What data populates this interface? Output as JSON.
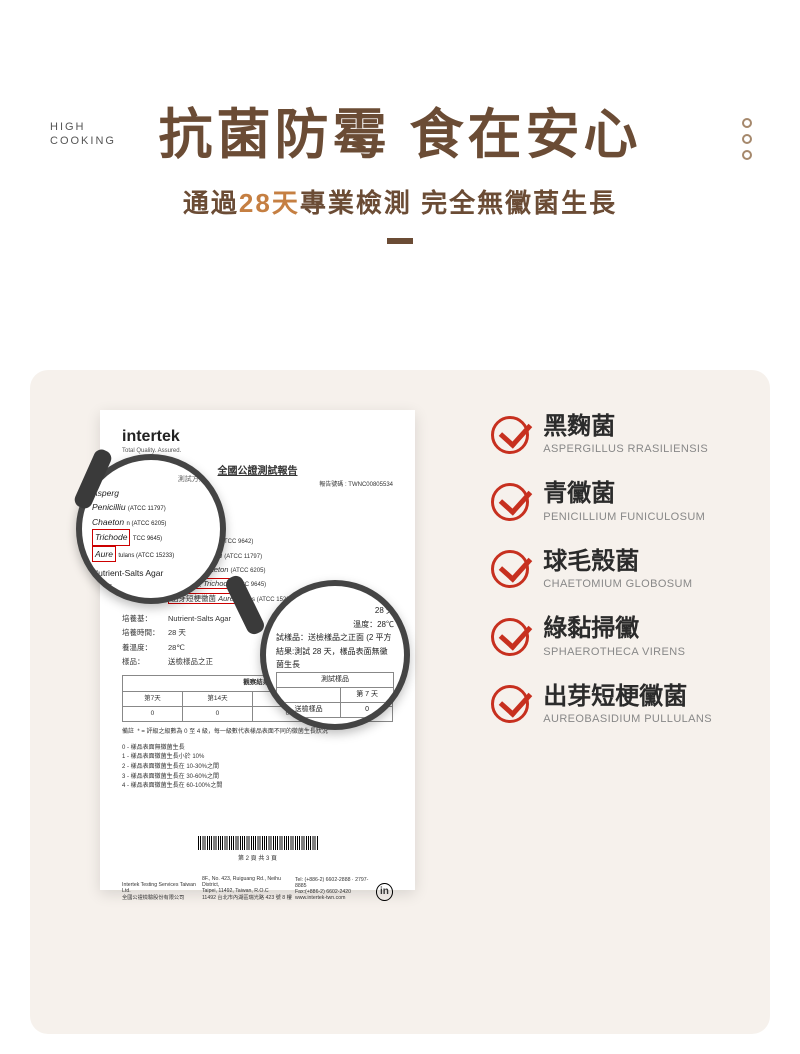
{
  "brand": {
    "line1": "HIGH",
    "line2": "COOKING"
  },
  "headline": {
    "main": "抗菌防霉 食在安心",
    "sub_pre": "通過",
    "sub_accent": "28天",
    "sub_post": "專業檢測 完全無黴菌生長"
  },
  "report": {
    "logo": "intertek",
    "tagline": "Total Quality. Assured.",
    "title": "全國公證測試報告",
    "number_label": "報告號碼  :  TWNC00805534",
    "section_label": "測試內容:",
    "species_label": "試菌種：",
    "species": [
      {
        "cn": "黑麴菌",
        "latin": "Asperg",
        "code": "(ATCC 9642)"
      },
      {
        "cn": "青黴菌",
        "latin": "Penicilliu",
        "code": "(ATCC 11797)"
      },
      {
        "cn": "球毛殼菌",
        "latin": "Chaeton",
        "code": "(ATCC 6205)"
      },
      {
        "cn": "綠黏掃黴",
        "latin": "Trichode",
        "code": "TCC 9645)",
        "red": true
      },
      {
        "cn": "出芽短梗黴菌",
        "latin": "Aure",
        "code": "tulans (ATCC 15233)",
        "red": true
      }
    ],
    "medium_label": "培養基：",
    "medium": "Nutrient-Salts Agar",
    "time_label": "培養時間：",
    "time": "28 天",
    "temp_label": "養溫度：",
    "temp": "28℃",
    "sample_label": "樣品：",
    "sample": "送檢樣品之正",
    "table_caption": "觀察結果*",
    "table_headers": [
      "第7天",
      "第14天",
      "第21天",
      "第28天"
    ],
    "table_row": [
      "0",
      "0",
      "0",
      "0"
    ],
    "note_star": "* = 評級之級數為 0 至 4 級，每一級數代表樣品表面不同的黴菌生長狀況",
    "notes": [
      "0 - 樣品表面無黴菌生長",
      "1 - 樣品表面黴菌生長小於 10%",
      "2 - 樣品表面黴菌生長在 10-30%之間",
      "3 - 樣品表面黴菌生長在 30-60%之間",
      "4 - 樣品表面黴菌生長在 60-100%之間"
    ],
    "page_num": "第 2 頁 共 3 頁",
    "footer_company": "Intertek Testing Services Taiwan Ltd.\n全國公證檢驗股份有限公司",
    "footer_addr": "8F., No. 423, Ruiguang Rd., Neihu District,\nTaipei, 11492, Taiwan, R.O.C\n11492 台北市內湖區瑞光路 423 號 8 樓",
    "footer_tel": "Tel: (+886-2) 6602-2888 · 2797-8885\nFax:(+886-2) 6602-2420\nwww.intertek-twn.com"
  },
  "lens1": {
    "l1": "測試方法 ·",
    "rows": [
      "<i>Asperg</i>",
      "<i>Penicilliu</i> <span style='font-size:6px'>(ATCC 11797)</span>",
      "<i>Chaeton</i> <span style='font-size:6px'>n (ATCC 6205)</span>",
      "<span class='red'><i>Trichode</i></span> <span style='font-size:6px'>TCC 9645)</span>",
      "<span class='red'><i>Aure</i></span> <span style='font-size:6px'>tulans (ATCC 15233)</span>"
    ],
    "medium": "Nutrient-Salts Agar",
    "time": "28 天",
    "temp": "28℃",
    "sample": "送檢樣品之正"
  },
  "lens2": {
    "t1": "28 天",
    "t2": "溫度：28℃",
    "t3": "試樣品：送檢樣品之正面 (2 平方",
    "t4": "結果:測試 28 天，樣品表面無黴菌生長",
    "tbl": {
      "r1c1": "測試樣品",
      "r2c1": "",
      "r2c2": "第 7 天",
      "r3c1": "送檢樣品",
      "r3c2": "0"
    },
    "note": "*  = 評級之級數為 0 至 4",
    "footer": "樣品表面無"
  },
  "organisms": [
    {
      "cn": "黑麴菌",
      "en": "ASPERGILLUS RRASILIENSIS"
    },
    {
      "cn": "青黴菌",
      "en": "PENICILLIUM FUNICULOSUM"
    },
    {
      "cn": "球毛殼菌",
      "en": "CHAETOMIUM GLOBOSUM"
    },
    {
      "cn": "綠黏掃黴",
      "en": "SPHAEROTHECA VIRENS"
    },
    {
      "cn": "出芽短梗黴菌",
      "en": "AUREOBASIDIUM PULLULANS"
    }
  ],
  "colors": {
    "brown": "#6b4c35",
    "accent": "#c57f42",
    "panel": "#f6f1ec",
    "red": "#c7301f"
  }
}
